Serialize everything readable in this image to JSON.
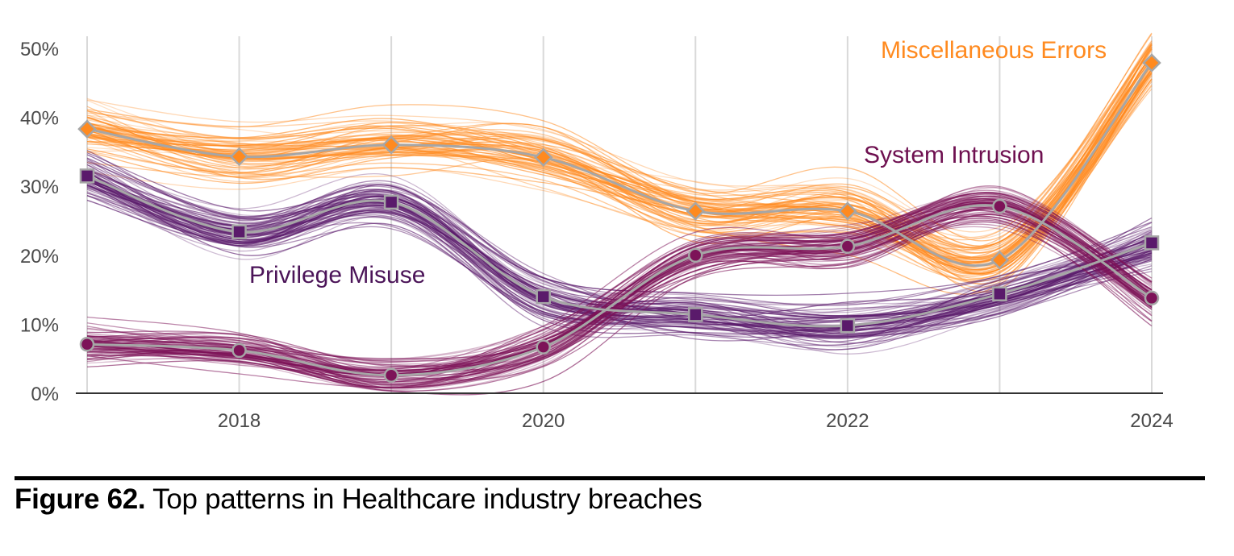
{
  "chart_data": {
    "type": "line",
    "title": "",
    "xlabel": "",
    "ylabel": "",
    "x": [
      2017,
      2018,
      2019,
      2020,
      2021,
      2022,
      2023,
      2024
    ],
    "x_tick_labels": [
      "2018",
      "2020",
      "2022",
      "2024"
    ],
    "x_ticks": [
      2018,
      2020,
      2022,
      2024
    ],
    "y_tick_labels": [
      "0%",
      "10%",
      "20%",
      "30%",
      "40%",
      "50%"
    ],
    "y_ticks": [
      0,
      10,
      20,
      30,
      40,
      50
    ],
    "ylim": [
      0,
      50
    ],
    "xlim": [
      2017,
      2024
    ],
    "grid": "vertical",
    "legend": "inline-labels",
    "series": [
      {
        "name": "Miscellaneous Errors",
        "marker": "diamond",
        "color": "#ff8a1f",
        "values": [
          38.3,
          34.3,
          36.0,
          34.2,
          26.4,
          26.4,
          19.3,
          47.9
        ],
        "uncertainty_spread": 3.5
      },
      {
        "name": "Privilege Misuse",
        "marker": "square",
        "color": "#5a1a6b",
        "values": [
          31.5,
          23.4,
          27.7,
          14.0,
          11.4,
          9.8,
          14.4,
          21.8
        ],
        "uncertainty_spread": 3.0
      },
      {
        "name": "System Intrusion",
        "marker": "circle",
        "color": "#7d1358",
        "values": [
          7.1,
          6.2,
          2.6,
          6.7,
          20.0,
          21.3,
          27.1,
          13.8
        ],
        "uncertainty_spread": 2.5
      }
    ]
  },
  "caption": {
    "figure_label": "Figure 62.",
    "text": " Top patterns in Healthcare industry breaches"
  }
}
